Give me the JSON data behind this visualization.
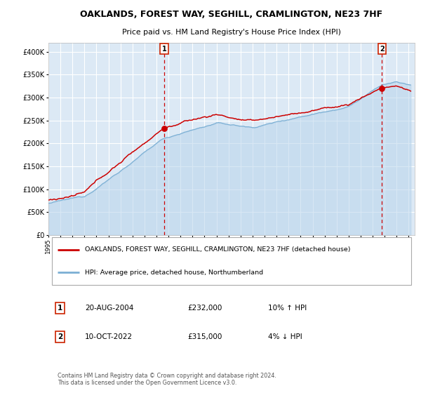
{
  "title": "OAKLANDS, FOREST WAY, SEGHILL, CRAMLINGTON, NE23 7HF",
  "subtitle": "Price paid vs. HM Land Registry's House Price Index (HPI)",
  "legend_line1": "OAKLANDS, FOREST WAY, SEGHILL, CRAMLINGTON, NE23 7HF (detached house)",
  "legend_line2": "HPI: Average price, detached house, Northumberland",
  "sale1_date": "20-AUG-2004",
  "sale1_price": 232000,
  "sale1_hpi_rel": "10% ↑ HPI",
  "sale2_date": "10-OCT-2022",
  "sale2_price": 315000,
  "sale2_hpi_rel": "4% ↓ HPI",
  "footer": "Contains HM Land Registry data © Crown copyright and database right 2024.\nThis data is licensed under the Open Government Licence v3.0.",
  "bg_color": "#ffffff",
  "plot_bg": "#dce9f5",
  "grid_color": "#ffffff",
  "hpi_line_color": "#7bafd4",
  "hpi_fill_color": "#b8d4eb",
  "price_line_color": "#cc0000",
  "marker_color": "#cc0000",
  "dashed_line_color": "#cc0000",
  "box_edge_color": "#cc2200",
  "legend_border_color": "#aaaaaa",
  "ylim": [
    0,
    420000
  ],
  "yticks": [
    0,
    50000,
    100000,
    150000,
    200000,
    250000,
    300000,
    350000,
    400000
  ],
  "ytick_labels": [
    "£0",
    "£50K",
    "£100K",
    "£150K",
    "£200K",
    "£250K",
    "£300K",
    "£350K",
    "£400K"
  ],
  "sale1_x": 2004.64,
  "sale2_x": 2022.78,
  "xmin": 1995.0,
  "xmax": 2025.5
}
